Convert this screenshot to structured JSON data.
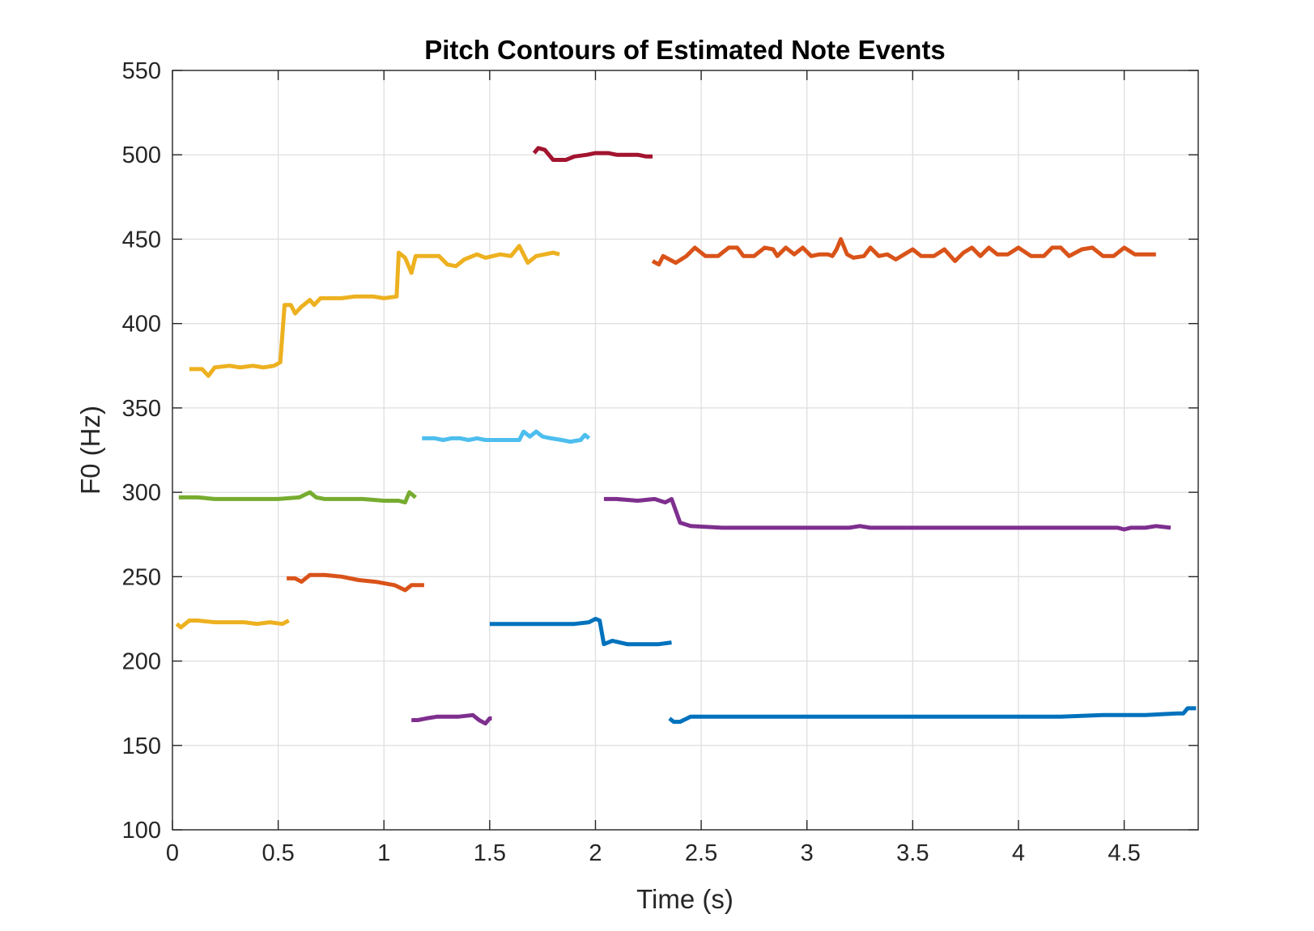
{
  "chart_data": {
    "type": "line",
    "title": "Pitch Contours of Estimated Note Events",
    "xlabel": "Time (s)",
    "ylabel": "F0 (Hz)",
    "xlim": [
      0,
      4.85
    ],
    "ylim": [
      100,
      550
    ],
    "xticks": [
      0,
      0.5,
      1,
      1.5,
      2,
      2.5,
      3,
      3.5,
      4,
      4.5
    ],
    "xtick_labels": [
      "0",
      "0.5",
      "1",
      "1.5",
      "2",
      "2.5",
      "3",
      "3.5",
      "4",
      "4.5"
    ],
    "yticks": [
      100,
      150,
      200,
      250,
      300,
      350,
      400,
      450,
      500,
      550
    ],
    "ytick_labels": [
      "100",
      "150",
      "200",
      "250",
      "300",
      "350",
      "400",
      "450",
      "500",
      "550"
    ],
    "grid": true,
    "legend": "none",
    "series": [
      {
        "color": "#EDB120",
        "points": [
          [
            0.02,
            222
          ],
          [
            0.04,
            220
          ],
          [
            0.08,
            224
          ],
          [
            0.12,
            224
          ],
          [
            0.2,
            223
          ],
          [
            0.28,
            223
          ],
          [
            0.34,
            223
          ],
          [
            0.4,
            222
          ],
          [
            0.46,
            223
          ],
          [
            0.52,
            222
          ],
          [
            0.55,
            224
          ]
        ]
      },
      {
        "color": "#D95319",
        "points": [
          [
            0.54,
            249
          ],
          [
            0.58,
            249
          ],
          [
            0.61,
            247
          ],
          [
            0.65,
            251
          ],
          [
            0.72,
            251
          ],
          [
            0.8,
            250
          ],
          [
            0.88,
            248
          ],
          [
            0.96,
            247
          ],
          [
            1.05,
            245
          ],
          [
            1.1,
            242
          ],
          [
            1.13,
            245
          ],
          [
            1.18,
            245
          ],
          [
            1.19,
            245
          ]
        ]
      },
      {
        "color": "#77AC30",
        "points": [
          [
            0.03,
            297
          ],
          [
            0.12,
            297
          ],
          [
            0.2,
            296
          ],
          [
            0.3,
            296
          ],
          [
            0.4,
            296
          ],
          [
            0.5,
            296
          ],
          [
            0.6,
            297
          ],
          [
            0.65,
            300
          ],
          [
            0.68,
            297
          ],
          [
            0.72,
            296
          ],
          [
            0.8,
            296
          ],
          [
            0.9,
            296
          ],
          [
            1.0,
            295
          ],
          [
            1.07,
            295
          ],
          [
            1.1,
            294
          ],
          [
            1.12,
            300
          ],
          [
            1.15,
            297
          ]
        ]
      },
      {
        "color": "#EDB120",
        "points": [
          [
            0.08,
            373
          ],
          [
            0.14,
            373
          ],
          [
            0.17,
            369
          ],
          [
            0.2,
            374
          ],
          [
            0.27,
            375
          ],
          [
            0.32,
            374
          ],
          [
            0.38,
            375
          ],
          [
            0.43,
            374
          ],
          [
            0.48,
            375
          ],
          [
            0.51,
            377
          ],
          [
            0.53,
            411
          ],
          [
            0.56,
            411
          ],
          [
            0.58,
            406
          ],
          [
            0.61,
            410
          ],
          [
            0.65,
            414
          ],
          [
            0.67,
            411
          ],
          [
            0.7,
            415
          ],
          [
            0.8,
            415
          ],
          [
            0.86,
            416
          ],
          [
            0.95,
            416
          ],
          [
            1.0,
            415
          ],
          [
            1.06,
            416
          ],
          [
            1.07,
            442
          ],
          [
            1.1,
            439
          ],
          [
            1.13,
            430
          ],
          [
            1.15,
            440
          ],
          [
            1.2,
            440
          ],
          [
            1.26,
            440
          ],
          [
            1.3,
            435
          ],
          [
            1.34,
            434
          ],
          [
            1.38,
            438
          ],
          [
            1.44,
            441
          ],
          [
            1.48,
            439
          ],
          [
            1.55,
            441
          ],
          [
            1.6,
            440
          ],
          [
            1.64,
            446
          ],
          [
            1.68,
            436
          ],
          [
            1.72,
            440
          ],
          [
            1.76,
            441
          ],
          [
            1.8,
            442
          ],
          [
            1.83,
            441
          ]
        ]
      },
      {
        "color": "#4DBEEE",
        "points": [
          [
            1.18,
            332
          ],
          [
            1.24,
            332
          ],
          [
            1.28,
            331
          ],
          [
            1.32,
            332
          ],
          [
            1.36,
            332
          ],
          [
            1.4,
            331
          ],
          [
            1.44,
            332
          ],
          [
            1.48,
            331
          ],
          [
            1.52,
            331
          ],
          [
            1.58,
            331
          ],
          [
            1.64,
            331
          ],
          [
            1.66,
            336
          ],
          [
            1.69,
            333
          ],
          [
            1.72,
            336
          ],
          [
            1.75,
            333
          ],
          [
            1.79,
            332
          ],
          [
            1.84,
            331
          ],
          [
            1.88,
            330
          ],
          [
            1.93,
            331
          ],
          [
            1.95,
            334
          ],
          [
            1.97,
            332
          ]
        ]
      },
      {
        "color": "#A2142F",
        "points": [
          [
            1.71,
            501
          ],
          [
            1.73,
            504
          ],
          [
            1.76,
            503
          ],
          [
            1.8,
            497
          ],
          [
            1.86,
            497
          ],
          [
            1.9,
            499
          ],
          [
            1.96,
            500
          ],
          [
            2.0,
            501
          ],
          [
            2.06,
            501
          ],
          [
            2.1,
            500
          ],
          [
            2.16,
            500
          ],
          [
            2.2,
            500
          ],
          [
            2.24,
            499
          ],
          [
            2.27,
            499
          ]
        ]
      },
      {
        "color": "#D95319",
        "points": [
          [
            2.27,
            437
          ],
          [
            2.3,
            435
          ],
          [
            2.32,
            440
          ],
          [
            2.35,
            438
          ],
          [
            2.38,
            436
          ],
          [
            2.43,
            440
          ],
          [
            2.47,
            445
          ],
          [
            2.52,
            440
          ],
          [
            2.58,
            440
          ],
          [
            2.63,
            445
          ],
          [
            2.67,
            445
          ],
          [
            2.7,
            440
          ],
          [
            2.75,
            440
          ],
          [
            2.8,
            445
          ],
          [
            2.84,
            444
          ],
          [
            2.86,
            440
          ],
          [
            2.9,
            445
          ],
          [
            2.94,
            441
          ],
          [
            2.98,
            445
          ],
          [
            3.02,
            440
          ],
          [
            3.06,
            441
          ],
          [
            3.1,
            441
          ],
          [
            3.12,
            440
          ],
          [
            3.14,
            444
          ],
          [
            3.16,
            450
          ],
          [
            3.19,
            441
          ],
          [
            3.22,
            439
          ],
          [
            3.27,
            440
          ],
          [
            3.3,
            445
          ],
          [
            3.34,
            440
          ],
          [
            3.38,
            441
          ],
          [
            3.42,
            438
          ],
          [
            3.46,
            441
          ],
          [
            3.5,
            444
          ],
          [
            3.54,
            440
          ],
          [
            3.6,
            440
          ],
          [
            3.65,
            444
          ],
          [
            3.7,
            437
          ],
          [
            3.74,
            442
          ],
          [
            3.78,
            445
          ],
          [
            3.82,
            440
          ],
          [
            3.86,
            445
          ],
          [
            3.9,
            441
          ],
          [
            3.95,
            441
          ],
          [
            4.0,
            445
          ],
          [
            4.06,
            440
          ],
          [
            4.12,
            440
          ],
          [
            4.16,
            445
          ],
          [
            4.2,
            445
          ],
          [
            4.24,
            440
          ],
          [
            4.3,
            444
          ],
          [
            4.35,
            445
          ],
          [
            4.4,
            440
          ],
          [
            4.45,
            440
          ],
          [
            4.5,
            445
          ],
          [
            4.55,
            441
          ],
          [
            4.6,
            441
          ],
          [
            4.65,
            441
          ]
        ]
      },
      {
        "color": "#7E2F8E",
        "points": [
          [
            2.04,
            296
          ],
          [
            2.1,
            296
          ],
          [
            2.2,
            295
          ],
          [
            2.28,
            296
          ],
          [
            2.33,
            294
          ],
          [
            2.36,
            296
          ],
          [
            2.4,
            282
          ],
          [
            2.45,
            280
          ],
          [
            2.6,
            279
          ],
          [
            2.8,
            279
          ],
          [
            3.0,
            279
          ],
          [
            3.2,
            279
          ],
          [
            3.25,
            280
          ],
          [
            3.3,
            279
          ],
          [
            3.5,
            279
          ],
          [
            3.7,
            279
          ],
          [
            3.9,
            279
          ],
          [
            4.1,
            279
          ],
          [
            4.3,
            279
          ],
          [
            4.47,
            279
          ],
          [
            4.5,
            278
          ],
          [
            4.53,
            279
          ],
          [
            4.6,
            279
          ],
          [
            4.65,
            280
          ],
          [
            4.72,
            279
          ]
        ]
      },
      {
        "color": "#0072BD",
        "points": [
          [
            1.5,
            222
          ],
          [
            1.6,
            222
          ],
          [
            1.7,
            222
          ],
          [
            1.8,
            222
          ],
          [
            1.9,
            222
          ],
          [
            1.97,
            223
          ],
          [
            2.0,
            225
          ],
          [
            2.02,
            224
          ],
          [
            2.04,
            210
          ],
          [
            2.08,
            212
          ],
          [
            2.15,
            210
          ],
          [
            2.25,
            210
          ],
          [
            2.3,
            210
          ],
          [
            2.36,
            211
          ]
        ]
      },
      {
        "color": "#7E2F8E",
        "points": [
          [
            1.13,
            165
          ],
          [
            1.16,
            165
          ],
          [
            1.2,
            166
          ],
          [
            1.25,
            167
          ],
          [
            1.3,
            167
          ],
          [
            1.35,
            167
          ],
          [
            1.42,
            168
          ],
          [
            1.45,
            165
          ],
          [
            1.48,
            163
          ],
          [
            1.5,
            166
          ],
          [
            1.51,
            166
          ]
        ]
      },
      {
        "color": "#0072BD",
        "points": [
          [
            2.35,
            166
          ],
          [
            2.37,
            164
          ],
          [
            2.4,
            164
          ],
          [
            2.45,
            167
          ],
          [
            2.6,
            167
          ],
          [
            2.8,
            167
          ],
          [
            3.0,
            167
          ],
          [
            3.2,
            167
          ],
          [
            3.4,
            167
          ],
          [
            3.6,
            167
          ],
          [
            3.8,
            167
          ],
          [
            4.0,
            167
          ],
          [
            4.2,
            167
          ],
          [
            4.4,
            168
          ],
          [
            4.6,
            168
          ],
          [
            4.75,
            169
          ],
          [
            4.78,
            169
          ],
          [
            4.8,
            172
          ],
          [
            4.84,
            172
          ]
        ]
      }
    ]
  }
}
